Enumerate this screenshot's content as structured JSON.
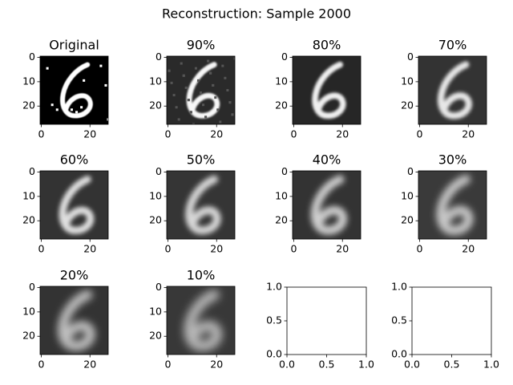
{
  "title": "Reconstruction: Sample 2000",
  "chart_data": [
    {
      "type": "image",
      "title": "Original",
      "xlim": [
        -0.5,
        27.5
      ],
      "ylim": [
        27.5,
        -0.5
      ],
      "xticks": [
        0,
        20
      ],
      "yticks": [
        0,
        10,
        20
      ]
    },
    {
      "type": "image",
      "title": "90%",
      "xlim": [
        -0.5,
        27.5
      ],
      "ylim": [
        27.5,
        -0.5
      ],
      "xticks": [
        0,
        20
      ],
      "yticks": [
        0,
        10,
        20
      ]
    },
    {
      "type": "image",
      "title": "80%",
      "xlim": [
        -0.5,
        27.5
      ],
      "ylim": [
        27.5,
        -0.5
      ],
      "xticks": [
        0,
        20
      ],
      "yticks": [
        0,
        10,
        20
      ]
    },
    {
      "type": "image",
      "title": "70%",
      "xlim": [
        -0.5,
        27.5
      ],
      "ylim": [
        27.5,
        -0.5
      ],
      "xticks": [
        0,
        20
      ],
      "yticks": [
        0,
        10,
        20
      ]
    },
    {
      "type": "image",
      "title": "60%",
      "xlim": [
        -0.5,
        27.5
      ],
      "ylim": [
        27.5,
        -0.5
      ],
      "xticks": [
        0,
        20
      ],
      "yticks": [
        0,
        10,
        20
      ]
    },
    {
      "type": "image",
      "title": "50%",
      "xlim": [
        -0.5,
        27.5
      ],
      "ylim": [
        27.5,
        -0.5
      ],
      "xticks": [
        0,
        20
      ],
      "yticks": [
        0,
        10,
        20
      ]
    },
    {
      "type": "image",
      "title": "40%",
      "xlim": [
        -0.5,
        27.5
      ],
      "ylim": [
        27.5,
        -0.5
      ],
      "xticks": [
        0,
        20
      ],
      "yticks": [
        0,
        10,
        20
      ]
    },
    {
      "type": "image",
      "title": "30%",
      "xlim": [
        -0.5,
        27.5
      ],
      "ylim": [
        27.5,
        -0.5
      ],
      "xticks": [
        0,
        20
      ],
      "yticks": [
        0,
        10,
        20
      ]
    },
    {
      "type": "image",
      "title": "20%",
      "xlim": [
        -0.5,
        27.5
      ],
      "ylim": [
        27.5,
        -0.5
      ],
      "xticks": [
        0,
        20
      ],
      "yticks": [
        0,
        10,
        20
      ]
    },
    {
      "type": "image",
      "title": "10%",
      "xlim": [
        -0.5,
        27.5
      ],
      "ylim": [
        27.5,
        -0.5
      ],
      "xticks": [
        0,
        20
      ],
      "yticks": [
        0,
        10,
        20
      ]
    },
    {
      "type": "empty",
      "xlim": [
        0,
        1
      ],
      "ylim": [
        0,
        1
      ],
      "xticks": [
        {
          "value": 0,
          "label": "0.0"
        },
        {
          "value": 0.5,
          "label": "0.5"
        },
        {
          "value": 1,
          "label": "1.0"
        }
      ],
      "yticks": [
        {
          "value": 0,
          "label": "0.0"
        },
        {
          "value": 0.5,
          "label": "0.5"
        },
        {
          "value": 1,
          "label": "1.0"
        }
      ]
    },
    {
      "type": "empty",
      "xlim": [
        0,
        1
      ],
      "ylim": [
        0,
        1
      ],
      "xticks": [
        {
          "value": 0,
          "label": "0.0"
        },
        {
          "value": 0.5,
          "label": "0.5"
        },
        {
          "value": 1,
          "label": "1.0"
        }
      ],
      "yticks": [
        {
          "value": 0,
          "label": "0.0"
        },
        {
          "value": 0.5,
          "label": "0.5"
        },
        {
          "value": 1,
          "label": "1.0"
        }
      ]
    }
  ]
}
